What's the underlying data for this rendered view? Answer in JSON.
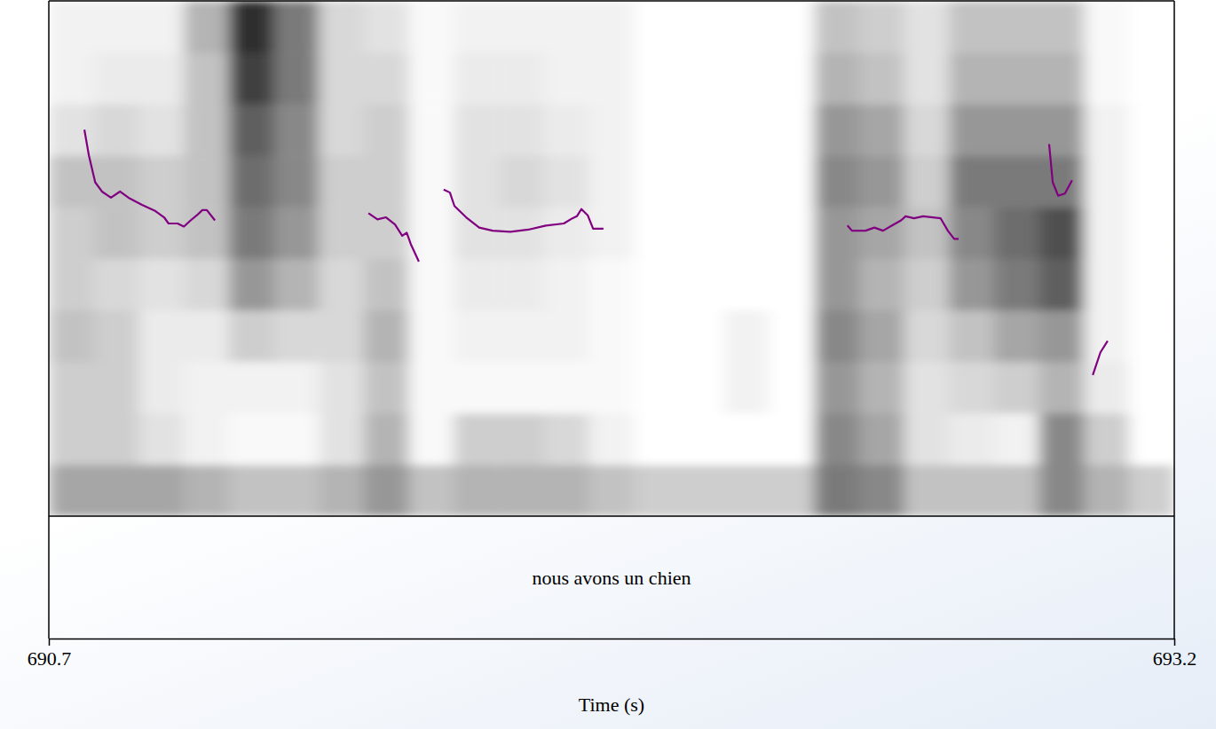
{
  "chart_data": {
    "type": "spectrogram",
    "x_label": "Time (s)",
    "annotations": [
      "nous avons un chien"
    ],
    "xlim": [
      690.7,
      693.2
    ],
    "xticks": [
      690.7,
      693.2
    ],
    "ylim": [
      0,
      5000
    ],
    "y2lim": [
      0,
      500
    ],
    "tick_labels": "x",
    "zlim": [
      0,
      1
    ],
    "spectrogram": {
      "time_bins": [
        690.7,
        690.8,
        690.9,
        691.0,
        691.1,
        691.2,
        691.3,
        691.4,
        691.5,
        691.6,
        691.7,
        691.8,
        691.9,
        692.0,
        692.1,
        692.2,
        692.3,
        692.4,
        692.5,
        692.6,
        692.7,
        692.8,
        692.9,
        693.0,
        693.1,
        693.2
      ],
      "frequency_bins": [
        0,
        500,
        1000,
        1500,
        2000,
        2500,
        3000,
        3500,
        4000,
        4500,
        5000
      ],
      "cells": [
        [
          0.45,
          0.45,
          0.45,
          0.4,
          0.35,
          0.35,
          0.4,
          0.5,
          0.35,
          0.4,
          0.4,
          0.4,
          0.35,
          0.3,
          0.3,
          0.3,
          0.3,
          0.6,
          0.55,
          0.35,
          0.35,
          0.35,
          0.55,
          0.4,
          0.3
        ],
        [
          0.3,
          0.3,
          0.2,
          0.1,
          0.05,
          0.05,
          0.2,
          0.4,
          0.05,
          0.3,
          0.3,
          0.25,
          0.1,
          0,
          0,
          0,
          0,
          0.55,
          0.45,
          0.2,
          0.15,
          0.1,
          0.55,
          0.3,
          0
        ],
        [
          0.3,
          0.3,
          0.15,
          0.1,
          0.1,
          0.1,
          0.2,
          0.35,
          0.05,
          0.05,
          0.05,
          0.05,
          0.05,
          0,
          0,
          0.1,
          0,
          0.5,
          0.4,
          0.2,
          0.25,
          0.3,
          0.4,
          0.15,
          0
        ],
        [
          0.35,
          0.3,
          0.15,
          0.15,
          0.3,
          0.25,
          0.25,
          0.4,
          0.05,
          0.1,
          0.1,
          0.1,
          0.05,
          0,
          0,
          0.1,
          0,
          0.55,
          0.45,
          0.25,
          0.35,
          0.45,
          0.5,
          0.1,
          0
        ],
        [
          0.3,
          0.25,
          0.2,
          0.25,
          0.5,
          0.4,
          0.25,
          0.35,
          0.05,
          0.15,
          0.15,
          0.1,
          0.05,
          0,
          0,
          0,
          0,
          0.5,
          0.4,
          0.3,
          0.5,
          0.6,
          0.7,
          0.1,
          0
        ],
        [
          0.3,
          0.35,
          0.3,
          0.35,
          0.6,
          0.5,
          0.3,
          0.3,
          0.05,
          0.2,
          0.2,
          0.15,
          0.1,
          0,
          0,
          0,
          0,
          0.5,
          0.45,
          0.35,
          0.55,
          0.65,
          0.75,
          0.1,
          0
        ],
        [
          0.35,
          0.35,
          0.3,
          0.35,
          0.65,
          0.55,
          0.3,
          0.3,
          0.05,
          0.2,
          0.25,
          0.2,
          0.1,
          0,
          0,
          0,
          0,
          0.55,
          0.5,
          0.3,
          0.6,
          0.6,
          0.6,
          0.1,
          0
        ],
        [
          0.2,
          0.25,
          0.2,
          0.35,
          0.7,
          0.55,
          0.25,
          0.3,
          0.05,
          0.2,
          0.2,
          0.15,
          0.1,
          0,
          0,
          0,
          0,
          0.5,
          0.45,
          0.25,
          0.5,
          0.5,
          0.5,
          0.1,
          0
        ],
        [
          0.1,
          0.15,
          0.15,
          0.35,
          0.8,
          0.6,
          0.25,
          0.25,
          0.05,
          0.15,
          0.15,
          0.1,
          0.1,
          0,
          0,
          0,
          0,
          0.4,
          0.35,
          0.2,
          0.4,
          0.4,
          0.4,
          0.05,
          0
        ],
        [
          0.1,
          0.1,
          0.1,
          0.4,
          0.85,
          0.6,
          0.25,
          0.2,
          0.05,
          0.1,
          0.1,
          0.1,
          0.1,
          0,
          0,
          0,
          0,
          0.35,
          0.3,
          0.2,
          0.35,
          0.35,
          0.35,
          0.05,
          0
        ]
      ]
    },
    "series": [
      {
        "type": "line",
        "axis": "y2",
        "color": "#800080",
        "x": [
          690.779,
          690.789,
          690.803,
          690.818,
          690.838,
          690.858,
          690.877,
          690.907,
          690.937,
          690.956,
          690.966,
          690.986,
          691.0,
          691.015,
          691.029,
          691.041,
          691.051,
          691.069,
          null,
          691.41,
          691.43,
          691.449,
          691.469,
          691.485,
          691.495,
          691.504,
          691.522,
          null,
          691.577,
          691.591,
          691.601,
          691.627,
          691.656,
          691.686,
          691.725,
          691.765,
          691.804,
          691.844,
          691.863,
          691.873,
          691.883,
          691.897,
          691.909,
          691.932,
          null,
          692.474,
          692.484,
          692.514,
          692.534,
          692.553,
          692.573,
          692.593,
          692.603,
          692.622,
          692.642,
          692.681,
          692.697,
          692.711,
          692.721,
          null,
          692.922,
          692.93,
          692.942,
          692.957,
          692.973,
          null,
          693.019,
          693.036,
          693.052
        ],
        "values": [
          375,
          350,
          324,
          315,
          309,
          315,
          309,
          302,
          296,
          290,
          284,
          284,
          281,
          287,
          292,
          297,
          297,
          287,
          null,
          294,
          288,
          290,
          283,
          272,
          275,
          264,
          247,
          null,
          317,
          314,
          301,
          290,
          280,
          277,
          276,
          278,
          282,
          284,
          289,
          291,
          298,
          292,
          279,
          279,
          null,
          282,
          277,
          277,
          280,
          277,
          282,
          287,
          291,
          289,
          291,
          289,
          277,
          269,
          269,
          null,
          361,
          324,
          311,
          313,
          326,
          null,
          137,
          159,
          170
        ]
      }
    ]
  }
}
